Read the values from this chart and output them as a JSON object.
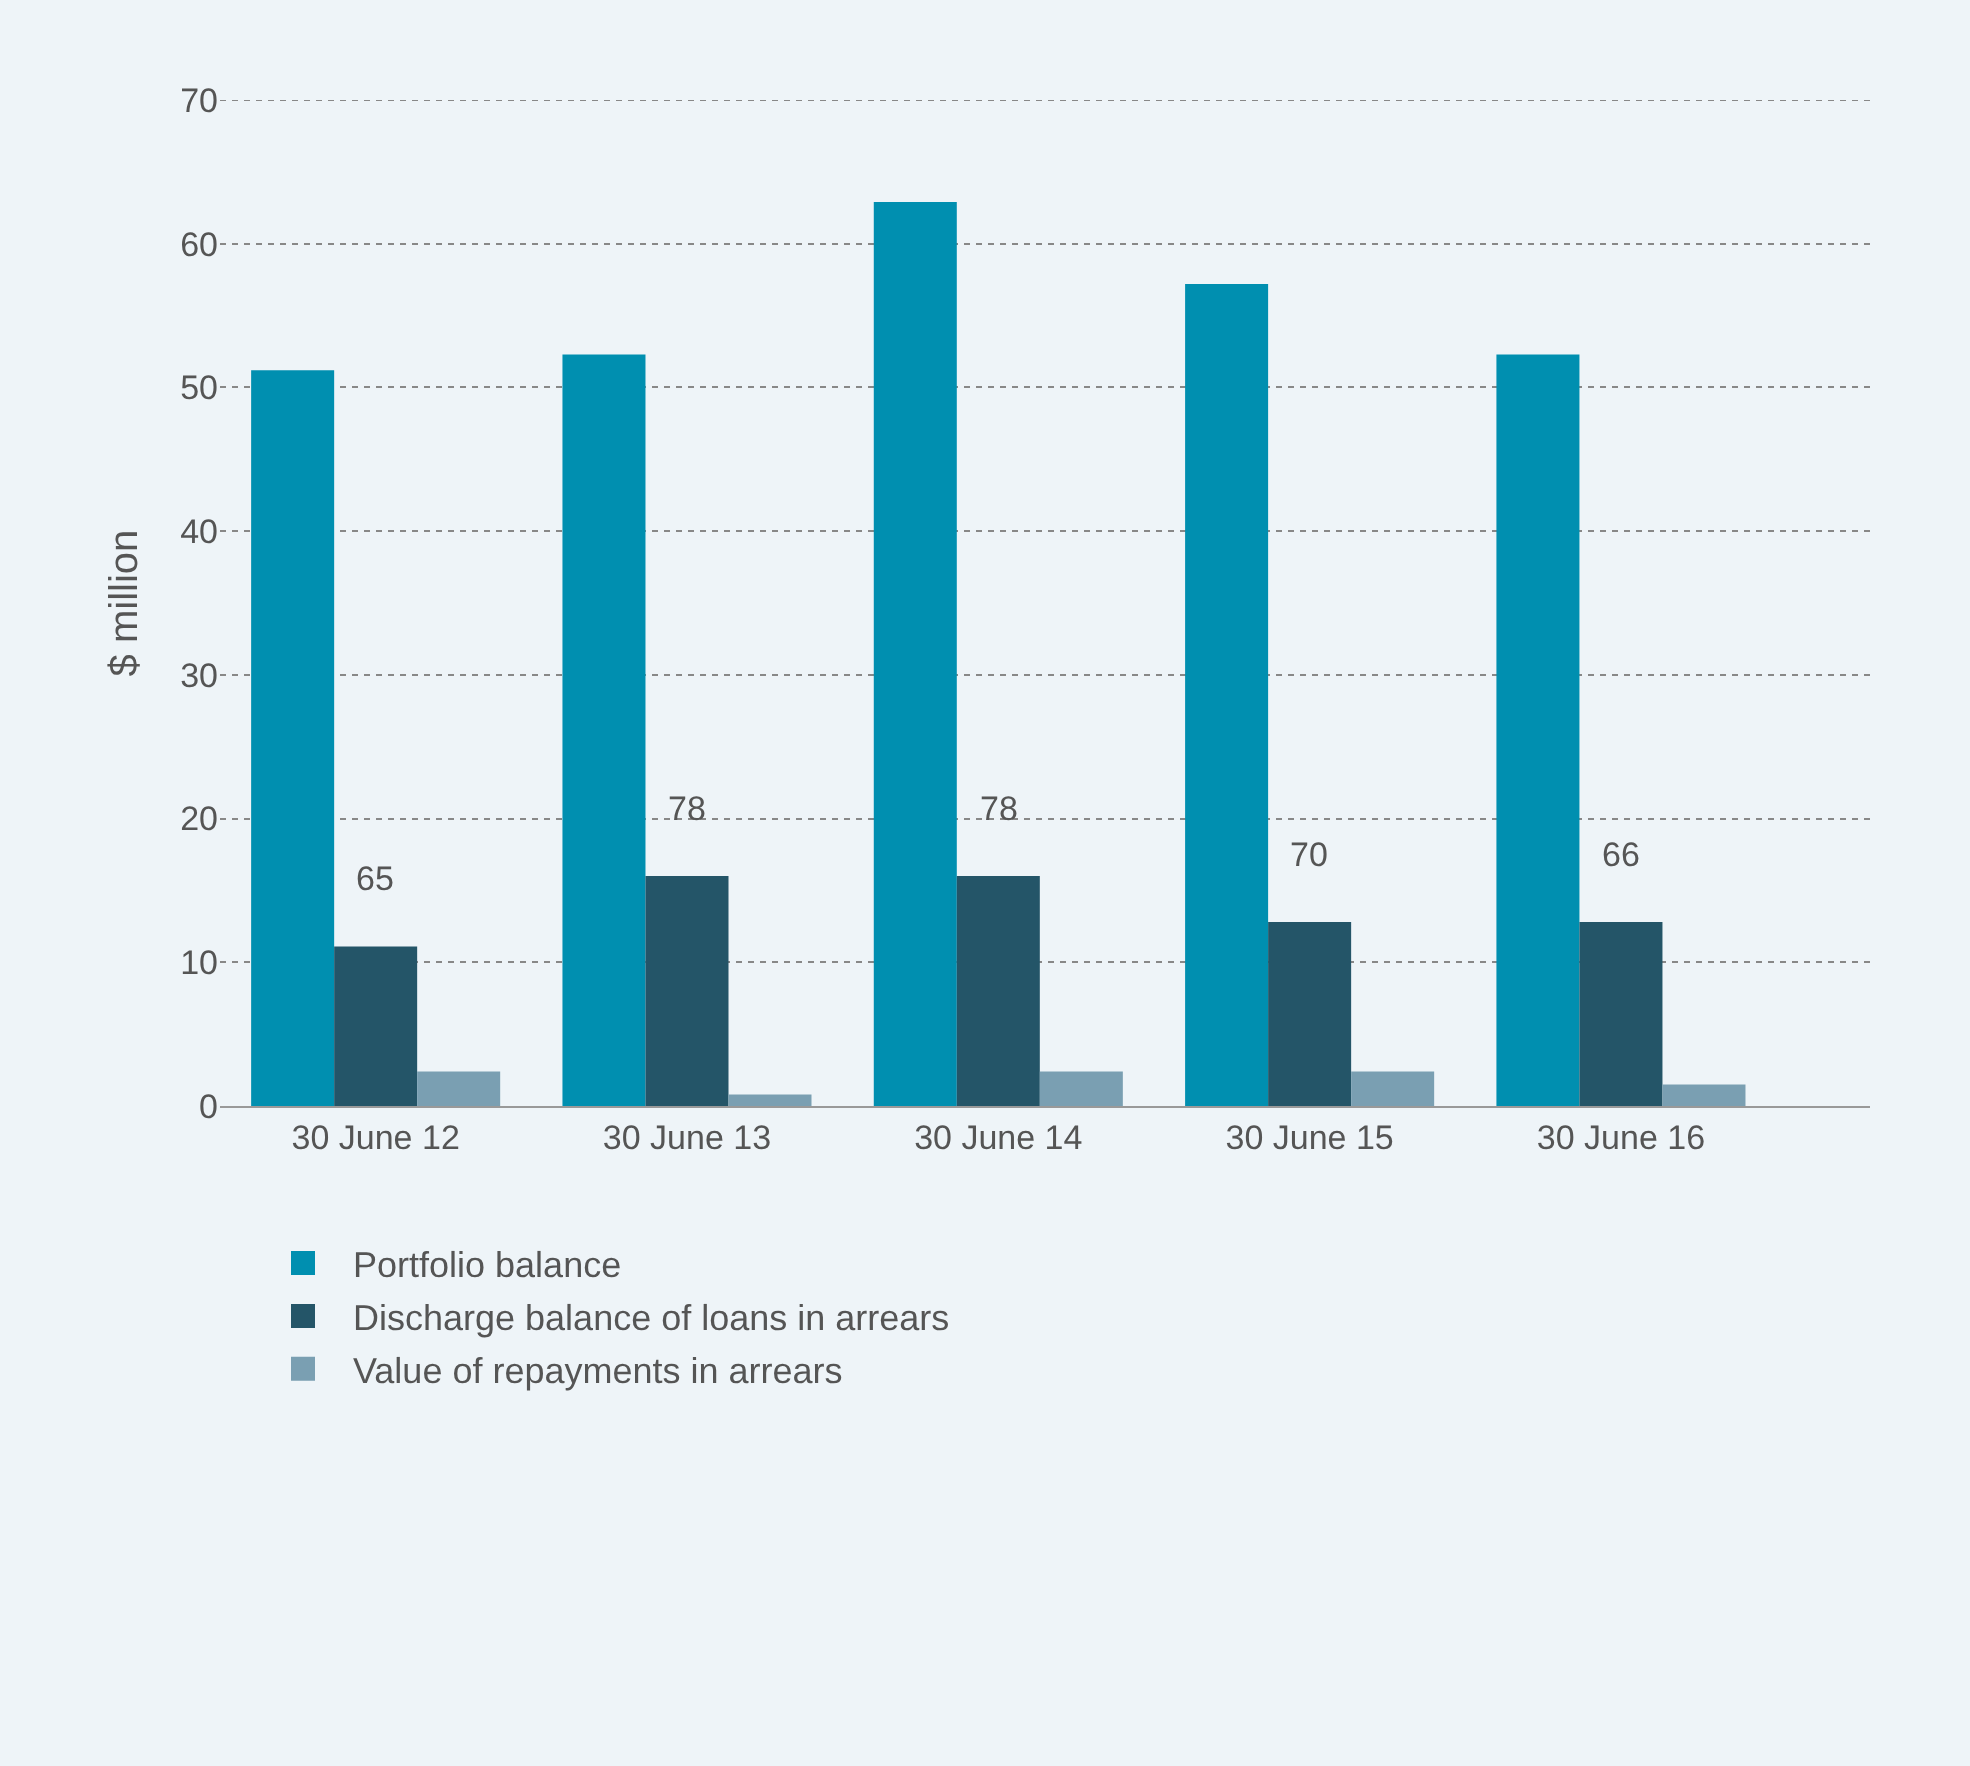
{
  "chart_data": {
    "type": "bar",
    "ylabel": "$ million",
    "categories": [
      "30 June 12",
      "30 June 13",
      "30 June 14",
      "30 June 15",
      "30 June 16"
    ],
    "series": [
      {
        "name": "Portfolio balance",
        "color": "#008fb0",
        "values": [
          51.2,
          52.3,
          62.9,
          57.2,
          52.3
        ]
      },
      {
        "name": "Discharge balance of loans in arrears",
        "color": "#245568",
        "values": [
          11.1,
          16.0,
          16.0,
          12.8,
          12.8
        ]
      },
      {
        "name": "Value of repayments in arrears",
        "color": "#7a9fb2",
        "values": [
          2.4,
          0.8,
          2.4,
          2.4,
          1.5
        ]
      }
    ],
    "annotations": [
      "65",
      "78",
      "78",
      "70",
      "66"
    ],
    "ylim": [
      0,
      70
    ],
    "yticks": [
      0,
      10,
      20,
      30,
      40,
      50,
      60,
      70
    ],
    "grid": "y",
    "legend": "bottom"
  }
}
